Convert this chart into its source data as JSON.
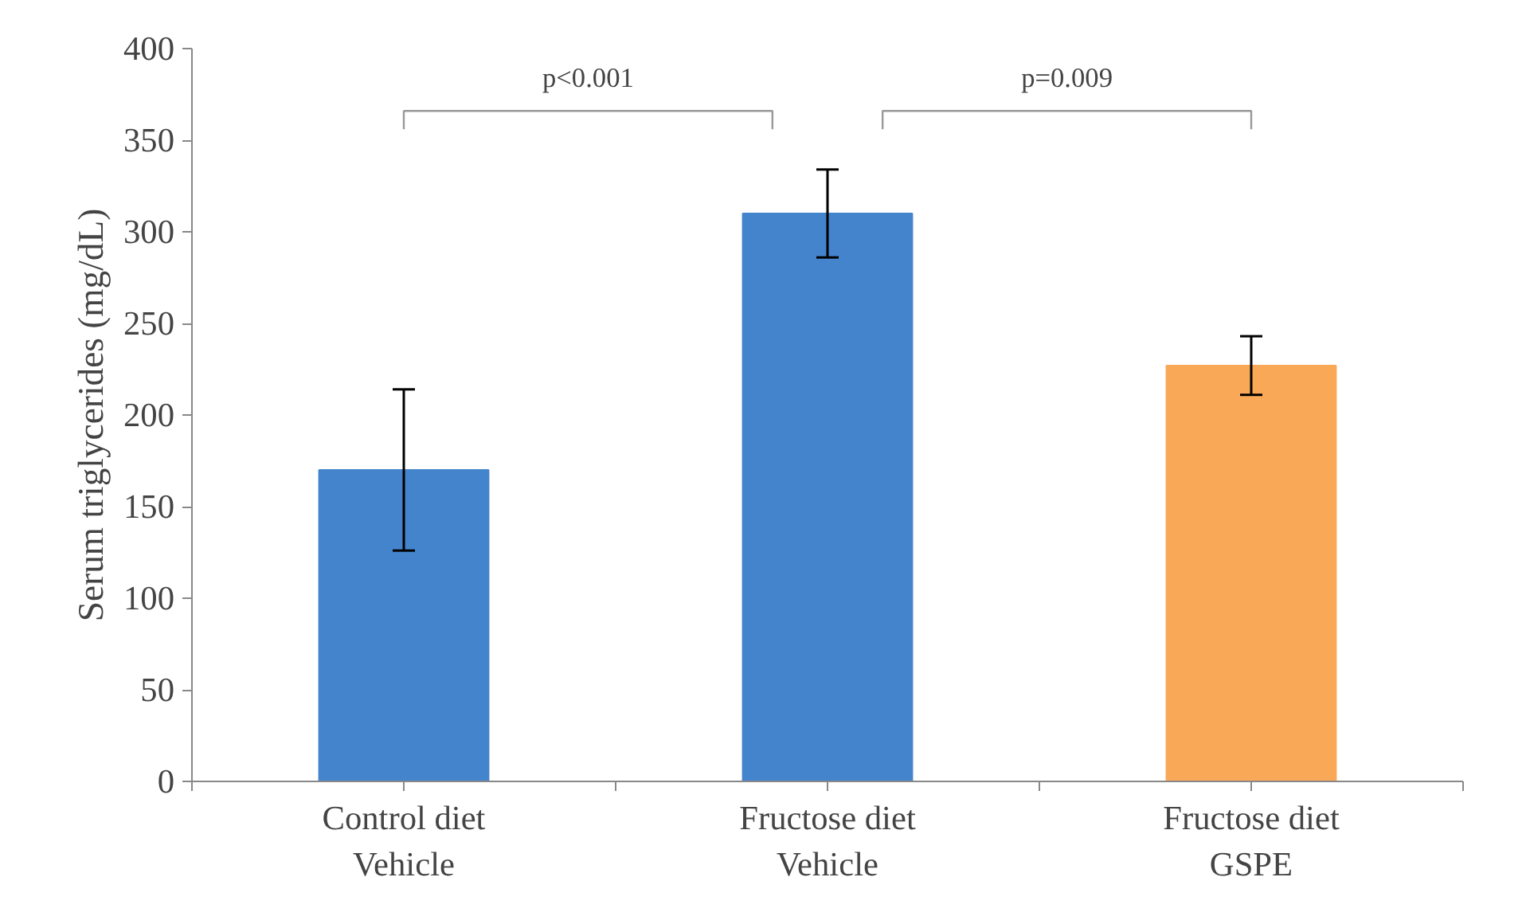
{
  "chart_data": {
    "type": "bar",
    "ylabel": "Serum triglycerides (mg/dL)",
    "categories": [
      "Control diet\nVehicle",
      "Fructose diet\nVehicle",
      "Fructose diet\nGSPE"
    ],
    "values": [
      170,
      310,
      227
    ],
    "colors": [
      "#4384cc",
      "#4384cc",
      "#f9a857"
    ],
    "errors": [
      44,
      24,
      16
    ],
    "ylim": [
      0,
      400
    ],
    "yticks": [
      0,
      50,
      100,
      150,
      200,
      250,
      300,
      350,
      400
    ],
    "grid": false,
    "annotations": [
      "p<0.001",
      "p=0.009"
    ]
  }
}
